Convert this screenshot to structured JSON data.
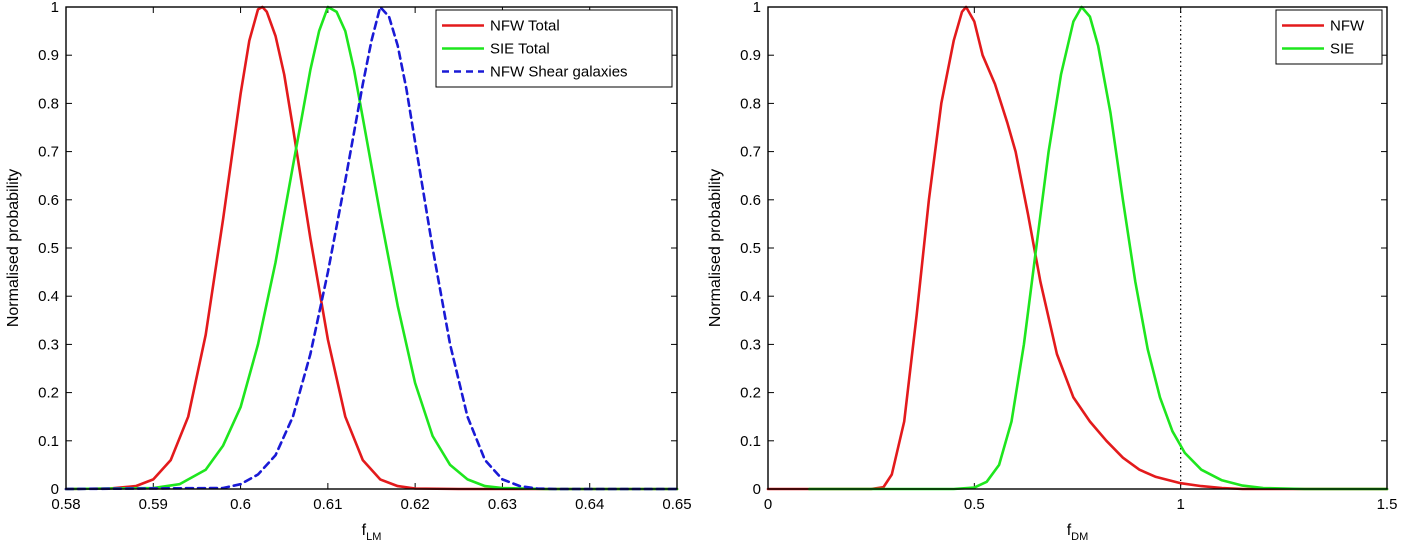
{
  "chart_data": [
    {
      "type": "line",
      "xlabel_main": "f",
      "xlabel_sub": "LM",
      "ylabel": "Normalised probability",
      "xlim": [
        0.58,
        0.65
      ],
      "ylim": [
        0,
        1
      ],
      "xticks": [
        0.58,
        0.59,
        0.6,
        0.61,
        0.62,
        0.63,
        0.64,
        0.65
      ],
      "xtick_labels": [
        "0.58",
        "0.59",
        "0.6",
        "0.61",
        "0.62",
        "0.63",
        "0.64",
        "0.65"
      ],
      "yticks": [
        0,
        0.1,
        0.2,
        0.3,
        0.4,
        0.5,
        0.6,
        0.7,
        0.8,
        0.9,
        1
      ],
      "ytick_labels": [
        "0",
        "0.1",
        "0.2",
        "0.3",
        "0.4",
        "0.5",
        "0.6",
        "0.7",
        "0.8",
        "0.9",
        "1"
      ],
      "legend_position": "top-right",
      "series": [
        {
          "name": "NFW Total",
          "color": "#e31a1c",
          "dash": "solid",
          "points": [
            [
              0.58,
              0
            ],
            [
              0.585,
              0.001
            ],
            [
              0.588,
              0.006
            ],
            [
              0.59,
              0.02
            ],
            [
              0.592,
              0.06
            ],
            [
              0.594,
              0.15
            ],
            [
              0.596,
              0.32
            ],
            [
              0.598,
              0.56
            ],
            [
              0.6,
              0.82
            ],
            [
              0.601,
              0.93
            ],
            [
              0.602,
              0.995
            ],
            [
              0.6025,
              1.0
            ],
            [
              0.603,
              0.99
            ],
            [
              0.604,
              0.94
            ],
            [
              0.605,
              0.86
            ],
            [
              0.606,
              0.75
            ],
            [
              0.608,
              0.52
            ],
            [
              0.61,
              0.31
            ],
            [
              0.612,
              0.15
            ],
            [
              0.614,
              0.06
            ],
            [
              0.616,
              0.02
            ],
            [
              0.618,
              0.006
            ],
            [
              0.62,
              0.001
            ],
            [
              0.625,
              0
            ],
            [
              0.65,
              0
            ]
          ]
        },
        {
          "name": "SIE Total",
          "color": "#1ee61e",
          "dash": "solid",
          "points": [
            [
              0.58,
              0
            ],
            [
              0.59,
              0.002
            ],
            [
              0.593,
              0.01
            ],
            [
              0.596,
              0.04
            ],
            [
              0.598,
              0.09
            ],
            [
              0.6,
              0.17
            ],
            [
              0.602,
              0.3
            ],
            [
              0.604,
              0.47
            ],
            [
              0.606,
              0.67
            ],
            [
              0.607,
              0.77
            ],
            [
              0.608,
              0.87
            ],
            [
              0.609,
              0.95
            ],
            [
              0.61,
              1.0
            ],
            [
              0.611,
              0.99
            ],
            [
              0.612,
              0.95
            ],
            [
              0.613,
              0.87
            ],
            [
              0.614,
              0.77
            ],
            [
              0.616,
              0.57
            ],
            [
              0.618,
              0.38
            ],
            [
              0.62,
              0.22
            ],
            [
              0.622,
              0.11
            ],
            [
              0.624,
              0.05
            ],
            [
              0.626,
              0.02
            ],
            [
              0.628,
              0.006
            ],
            [
              0.63,
              0.002
            ],
            [
              0.635,
              0
            ],
            [
              0.65,
              0
            ]
          ]
        },
        {
          "name": "NFW Shear galaxies",
          "color": "#1a1ad6",
          "dash": "dashed",
          "points": [
            [
              0.58,
              0
            ],
            [
              0.598,
              0.002
            ],
            [
              0.6,
              0.01
            ],
            [
              0.602,
              0.03
            ],
            [
              0.604,
              0.07
            ],
            [
              0.606,
              0.15
            ],
            [
              0.608,
              0.28
            ],
            [
              0.61,
              0.45
            ],
            [
              0.612,
              0.64
            ],
            [
              0.614,
              0.84
            ],
            [
              0.615,
              0.93
            ],
            [
              0.616,
              1.0
            ],
            [
              0.617,
              0.98
            ],
            [
              0.618,
              0.92
            ],
            [
              0.619,
              0.83
            ],
            [
              0.62,
              0.72
            ],
            [
              0.622,
              0.5
            ],
            [
              0.624,
              0.3
            ],
            [
              0.626,
              0.15
            ],
            [
              0.628,
              0.06
            ],
            [
              0.63,
              0.02
            ],
            [
              0.632,
              0.006
            ],
            [
              0.634,
              0.001
            ],
            [
              0.636,
              0
            ],
            [
              0.65,
              0
            ]
          ]
        }
      ]
    },
    {
      "type": "line",
      "xlabel_main": "f",
      "xlabel_sub": "DM",
      "ylabel": "Normalised probability",
      "xlim": [
        0,
        1.5
      ],
      "ylim": [
        0,
        1
      ],
      "xticks": [
        0,
        0.5,
        1,
        1.5
      ],
      "xtick_labels": [
        "0",
        "0.5",
        "1",
        "1.5"
      ],
      "yticks": [
        0,
        0.1,
        0.2,
        0.3,
        0.4,
        0.5,
        0.6,
        0.7,
        0.8,
        0.9,
        1
      ],
      "ytick_labels": [
        "0",
        "0.1",
        "0.2",
        "0.3",
        "0.4",
        "0.5",
        "0.6",
        "0.7",
        "0.8",
        "0.9",
        "1"
      ],
      "vline_x": 1,
      "legend_position": "top-right",
      "series": [
        {
          "name": "NFW",
          "color": "#e31a1c",
          "dash": "solid",
          "points": [
            [
              0,
              0
            ],
            [
              0.25,
              0
            ],
            [
              0.28,
              0.004
            ],
            [
              0.3,
              0.03
            ],
            [
              0.33,
              0.14
            ],
            [
              0.36,
              0.36
            ],
            [
              0.39,
              0.6
            ],
            [
              0.42,
              0.8
            ],
            [
              0.45,
              0.93
            ],
            [
              0.47,
              0.99
            ],
            [
              0.48,
              1.0
            ],
            [
              0.5,
              0.97
            ],
            [
              0.52,
              0.9
            ],
            [
              0.55,
              0.84
            ],
            [
              0.58,
              0.76
            ],
            [
              0.6,
              0.7
            ],
            [
              0.63,
              0.57
            ],
            [
              0.66,
              0.43
            ],
            [
              0.7,
              0.28
            ],
            [
              0.74,
              0.19
            ],
            [
              0.78,
              0.14
            ],
            [
              0.82,
              0.1
            ],
            [
              0.86,
              0.065
            ],
            [
              0.9,
              0.04
            ],
            [
              0.94,
              0.025
            ],
            [
              1.0,
              0.012
            ],
            [
              1.05,
              0.006
            ],
            [
              1.1,
              0.002
            ],
            [
              1.15,
              0
            ],
            [
              1.5,
              0
            ]
          ]
        },
        {
          "name": "SIE",
          "color": "#1ee61e",
          "dash": "solid",
          "points": [
            [
              0.1,
              0
            ],
            [
              0.45,
              0
            ],
            [
              0.5,
              0.003
            ],
            [
              0.53,
              0.015
            ],
            [
              0.56,
              0.05
            ],
            [
              0.59,
              0.14
            ],
            [
              0.62,
              0.3
            ],
            [
              0.65,
              0.5
            ],
            [
              0.68,
              0.7
            ],
            [
              0.71,
              0.86
            ],
            [
              0.74,
              0.97
            ],
            [
              0.76,
              1.0
            ],
            [
              0.78,
              0.98
            ],
            [
              0.8,
              0.92
            ],
            [
              0.83,
              0.78
            ],
            [
              0.86,
              0.6
            ],
            [
              0.89,
              0.43
            ],
            [
              0.92,
              0.29
            ],
            [
              0.95,
              0.19
            ],
            [
              0.98,
              0.12
            ],
            [
              1.01,
              0.075
            ],
            [
              1.05,
              0.04
            ],
            [
              1.1,
              0.018
            ],
            [
              1.15,
              0.007
            ],
            [
              1.2,
              0.002
            ],
            [
              1.3,
              0
            ],
            [
              1.5,
              0
            ]
          ]
        }
      ]
    }
  ]
}
